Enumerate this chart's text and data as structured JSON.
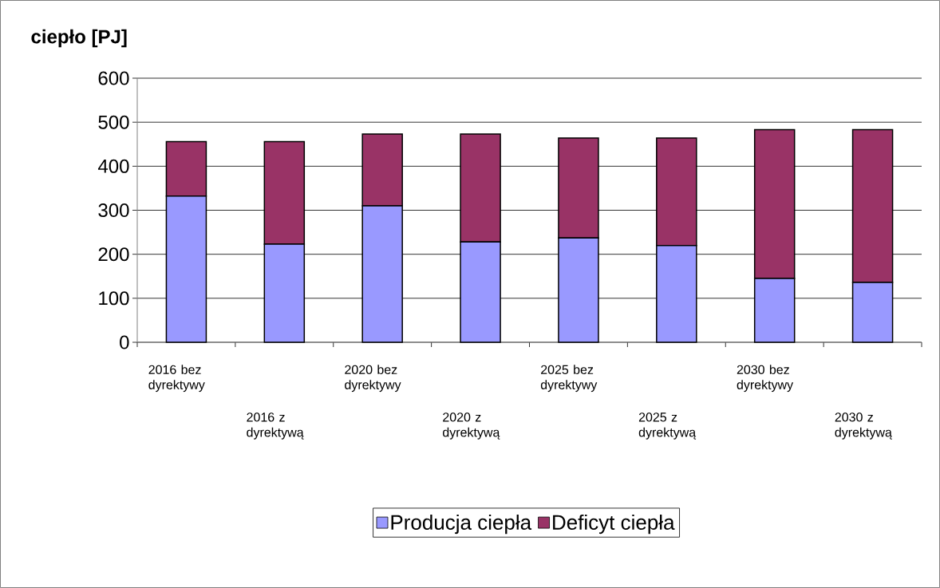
{
  "chart_data": {
    "type": "bar",
    "ylabel": "ciepło [PJ]",
    "categories": [
      "2016 bez dyrektywy",
      "2016 z dyrektywą",
      "2020 bez dyrektywy",
      "2020 z dyrektywą",
      "2025 bez dyrektywy",
      "2025 z dyrektywą",
      "2030 bez dyrektywy",
      "2030 z dyrektywą"
    ],
    "series": [
      {
        "name": "Producja ciepła",
        "color": "#9999ff",
        "values": [
          332,
          223,
          310,
          228,
          237,
          220,
          145,
          136
        ]
      },
      {
        "name": "Deficyt ciepła",
        "color": "#993366",
        "values": [
          124,
          233,
          163,
          245,
          227,
          244,
          338,
          347
        ]
      }
    ],
    "stacked": true,
    "ylim": [
      0,
      600
    ],
    "yticks": [
      0,
      100,
      200,
      300,
      400,
      500,
      600
    ],
    "grid": "y",
    "legend": "bottom"
  }
}
